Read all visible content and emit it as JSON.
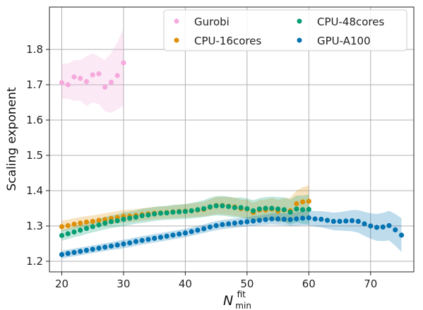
{
  "chart_data": {
    "type": "scatter",
    "title": "",
    "xlabel": {
      "main": "N",
      "sup": "fit",
      "sub": "min"
    },
    "ylabel": "Scaling exponent",
    "xlim": [
      18,
      77
    ],
    "ylim": [
      1.17,
      1.92
    ],
    "xticks": [
      20,
      30,
      40,
      50,
      60,
      70
    ],
    "yticks": [
      1.2,
      1.3,
      1.4,
      1.5,
      1.6,
      1.7,
      1.8
    ],
    "xtick_labels": [
      "20",
      "30",
      "40",
      "50",
      "60",
      "70"
    ],
    "ytick_labels": [
      "1.2",
      "1.3",
      "1.4",
      "1.5",
      "1.6",
      "1.7",
      "1.8"
    ],
    "grid": true,
    "legend_position": "top-right",
    "series": [
      {
        "name": "Gurobi",
        "color": "#f5a9dc",
        "x": [
          20,
          21,
          22,
          23,
          24,
          25,
          26,
          27,
          28,
          29,
          30
        ],
        "y": [
          1.706,
          1.7,
          1.722,
          1.718,
          1.709,
          1.728,
          1.731,
          1.693,
          1.707,
          1.726,
          1.762
        ],
        "lower": [
          1.66,
          1.66,
          1.655,
          1.655,
          1.64,
          1.65,
          1.645,
          1.625,
          1.62,
          1.63,
          1.64
        ],
        "upper": [
          1.76,
          1.76,
          1.77,
          1.77,
          1.78,
          1.79,
          1.78,
          1.77,
          1.79,
          1.82,
          1.86
        ]
      },
      {
        "name": "CPU-16cores",
        "color": "#de8f05",
        "x": [
          20,
          21,
          22,
          23,
          24,
          25,
          26,
          27,
          28,
          29,
          30,
          31,
          32,
          33,
          34,
          35,
          36,
          37,
          38,
          39,
          40,
          41,
          42,
          43,
          44,
          45,
          46,
          47,
          48,
          49,
          50,
          51,
          52,
          53,
          54,
          55,
          56,
          57,
          58,
          59,
          60
        ],
        "y": [
          1.298,
          1.301,
          1.305,
          1.308,
          1.311,
          1.313,
          1.316,
          1.318,
          1.321,
          1.324,
          1.327,
          1.328,
          1.33,
          1.332,
          1.334,
          1.336,
          1.337,
          1.338,
          1.34,
          1.341,
          1.342,
          1.343,
          1.345,
          1.347,
          1.353,
          1.358,
          1.358,
          1.356,
          1.354,
          1.349,
          1.348,
          1.338,
          1.345,
          1.345,
          1.348,
          1.342,
          1.345,
          1.343,
          1.363,
          1.368,
          1.37
        ],
        "lower": [
          1.285,
          1.288,
          1.291,
          1.294,
          1.296,
          1.298,
          1.3,
          1.302,
          1.305,
          1.307,
          1.31,
          1.311,
          1.313,
          1.315,
          1.317,
          1.319,
          1.32,
          1.321,
          1.322,
          1.323,
          1.324,
          1.325,
          1.326,
          1.327,
          1.33,
          1.333,
          1.333,
          1.331,
          1.329,
          1.325,
          1.323,
          1.313,
          1.318,
          1.316,
          1.318,
          1.311,
          1.312,
          1.308,
          1.325,
          1.327,
          1.327
        ],
        "upper": [
          1.315,
          1.318,
          1.322,
          1.325,
          1.328,
          1.33,
          1.333,
          1.336,
          1.339,
          1.342,
          1.345,
          1.346,
          1.348,
          1.35,
          1.352,
          1.354,
          1.355,
          1.356,
          1.358,
          1.36,
          1.362,
          1.364,
          1.366,
          1.368,
          1.375,
          1.382,
          1.383,
          1.382,
          1.38,
          1.375,
          1.374,
          1.366,
          1.373,
          1.375,
          1.379,
          1.374,
          1.379,
          1.38,
          1.4,
          1.41,
          1.415
        ]
      },
      {
        "name": "CPU-48cores",
        "color": "#029e73",
        "x": [
          20,
          21,
          22,
          23,
          24,
          25,
          26,
          27,
          28,
          29,
          30,
          31,
          32,
          33,
          34,
          35,
          36,
          37,
          38,
          39,
          40,
          41,
          42,
          43,
          44,
          45,
          46,
          47,
          48,
          49,
          50,
          51,
          52,
          53,
          54,
          55,
          56,
          57,
          58,
          59,
          60
        ],
        "y": [
          1.273,
          1.278,
          1.283,
          1.288,
          1.293,
          1.298,
          1.303,
          1.308,
          1.312,
          1.315,
          1.319,
          1.322,
          1.325,
          1.329,
          1.331,
          1.334,
          1.336,
          1.337,
          1.339,
          1.34,
          1.341,
          1.343,
          1.346,
          1.349,
          1.354,
          1.357,
          1.357,
          1.355,
          1.352,
          1.352,
          1.349,
          1.343,
          1.348,
          1.35,
          1.35,
          1.348,
          1.346,
          1.339,
          1.348,
          1.346,
          1.347
        ],
        "lower": [
          1.258,
          1.263,
          1.268,
          1.272,
          1.277,
          1.282,
          1.286,
          1.29,
          1.294,
          1.297,
          1.3,
          1.303,
          1.306,
          1.309,
          1.311,
          1.314,
          1.316,
          1.317,
          1.318,
          1.319,
          1.32,
          1.321,
          1.323,
          1.325,
          1.328,
          1.33,
          1.329,
          1.327,
          1.324,
          1.323,
          1.32,
          1.313,
          1.317,
          1.318,
          1.317,
          1.314,
          1.311,
          1.303,
          1.31,
          1.306,
          1.305
        ],
        "upper": [
          1.288,
          1.293,
          1.298,
          1.304,
          1.309,
          1.314,
          1.32,
          1.326,
          1.33,
          1.333,
          1.338,
          1.341,
          1.344,
          1.349,
          1.351,
          1.354,
          1.356,
          1.357,
          1.36,
          1.361,
          1.362,
          1.365,
          1.369,
          1.373,
          1.38,
          1.384,
          1.385,
          1.383,
          1.38,
          1.381,
          1.378,
          1.373,
          1.379,
          1.382,
          1.383,
          1.382,
          1.381,
          1.375,
          1.386,
          1.386,
          1.389
        ]
      },
      {
        "name": "GPU-A100",
        "color": "#0173b2",
        "x": [
          20,
          21,
          22,
          23,
          24,
          25,
          26,
          27,
          28,
          29,
          30,
          31,
          32,
          33,
          34,
          35,
          36,
          37,
          38,
          39,
          40,
          41,
          42,
          43,
          44,
          45,
          46,
          47,
          48,
          49,
          50,
          51,
          52,
          53,
          54,
          55,
          56,
          57,
          58,
          59,
          60,
          61,
          62,
          63,
          64,
          65,
          66,
          67,
          68,
          69,
          70,
          71,
          72,
          73,
          74,
          75
        ],
        "y": [
          1.219,
          1.222,
          1.225,
          1.228,
          1.231,
          1.234,
          1.237,
          1.24,
          1.243,
          1.246,
          1.249,
          1.252,
          1.256,
          1.259,
          1.262,
          1.265,
          1.268,
          1.271,
          1.274,
          1.277,
          1.28,
          1.284,
          1.288,
          1.292,
          1.297,
          1.301,
          1.304,
          1.306,
          1.308,
          1.31,
          1.312,
          1.314,
          1.316,
          1.318,
          1.32,
          1.32,
          1.319,
          1.318,
          1.32,
          1.322,
          1.323,
          1.32,
          1.319,
          1.316,
          1.313,
          1.313,
          1.314,
          1.315,
          1.313,
          1.306,
          1.3,
          1.296,
          1.297,
          1.301,
          1.289,
          1.274
        ],
        "lower": [
          1.208,
          1.211,
          1.214,
          1.217,
          1.22,
          1.223,
          1.226,
          1.229,
          1.232,
          1.234,
          1.237,
          1.24,
          1.244,
          1.247,
          1.25,
          1.253,
          1.256,
          1.259,
          1.262,
          1.265,
          1.268,
          1.272,
          1.276,
          1.28,
          1.284,
          1.288,
          1.291,
          1.293,
          1.295,
          1.297,
          1.299,
          1.3,
          1.302,
          1.303,
          1.304,
          1.303,
          1.302,
          1.3,
          1.301,
          1.302,
          1.302,
          1.298,
          1.296,
          1.292,
          1.288,
          1.287,
          1.286,
          1.285,
          1.281,
          1.272,
          1.264,
          1.258,
          1.257,
          1.259,
          1.244,
          1.226
        ],
        "upper": [
          1.23,
          1.233,
          1.236,
          1.239,
          1.242,
          1.245,
          1.248,
          1.251,
          1.254,
          1.258,
          1.261,
          1.264,
          1.268,
          1.271,
          1.274,
          1.277,
          1.28,
          1.283,
          1.286,
          1.289,
          1.292,
          1.296,
          1.3,
          1.304,
          1.31,
          1.314,
          1.317,
          1.319,
          1.321,
          1.323,
          1.325,
          1.328,
          1.33,
          1.333,
          1.336,
          1.337,
          1.336,
          1.336,
          1.339,
          1.342,
          1.344,
          1.342,
          1.342,
          1.34,
          1.338,
          1.339,
          1.342,
          1.345,
          1.345,
          1.34,
          1.336,
          1.334,
          1.337,
          1.343,
          1.334,
          1.322
        ]
      }
    ]
  },
  "legend": {
    "columns": 2,
    "entries": [
      {
        "label": "Gurobi",
        "color": "#f5a9dc"
      },
      {
        "label": "CPU-48cores",
        "color": "#029e73"
      },
      {
        "label": "CPU-16cores",
        "color": "#de8f05"
      },
      {
        "label": "GPU-A100",
        "color": "#0173b2"
      }
    ]
  }
}
